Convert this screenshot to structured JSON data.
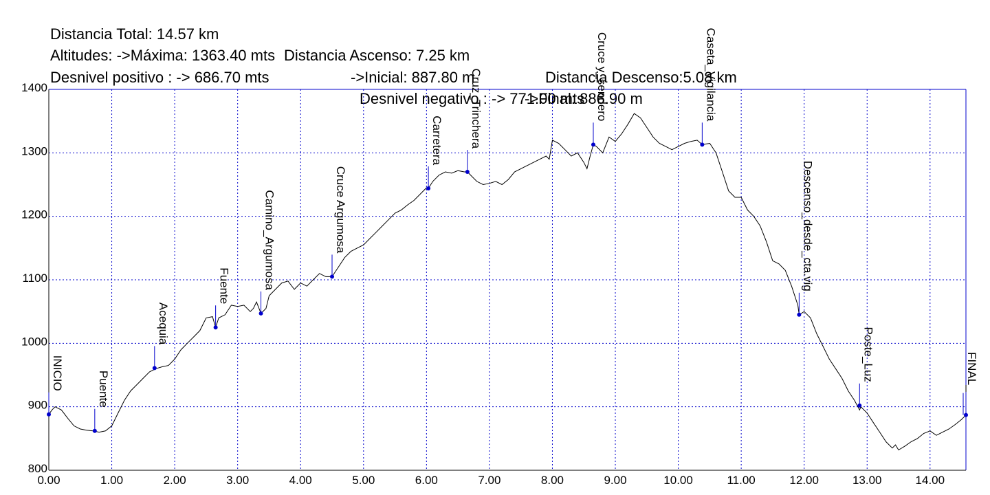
{
  "stats": {
    "total": "Distancia Total: 14.57 km",
    "ascent": "Distancia Ascenso: 7.25 km",
    "descent": "Distancia Descenso:5.08 km",
    "alt_max": "Altitudes: ->Máxima: 1363.40 mts",
    "alt_initial": "->Inicial: 887.80 m",
    "alt_final": "->Final: 886.90 m",
    "gain": "Desnivel positivo : -> 686.70 mts",
    "loss": "Desnivel negativo : -> 771.00 mts"
  },
  "chart_data": {
    "type": "line",
    "title": "",
    "xlabel": "",
    "ylabel": "",
    "xlim": [
      0,
      14.57
    ],
    "ylim": [
      800,
      1400
    ],
    "grid": true,
    "x_ticks": [
      "0.00",
      "1.00",
      "2.00",
      "3.00",
      "4.00",
      "5.00",
      "6.00",
      "7.00",
      "8.00",
      "9.00",
      "10.00",
      "11.00",
      "12.00",
      "13.00",
      "14.00"
    ],
    "y_ticks": [
      "800",
      "900",
      "1000",
      "1100",
      "1200",
      "1300",
      "1400"
    ],
    "colors": {
      "line": "#000000",
      "grid": "#0000cc",
      "frame": "#0000cc",
      "waypoint": "#0000cc"
    },
    "series": [
      {
        "x": [
          0,
          0.05,
          0.1,
          0.2,
          0.3,
          0.4,
          0.5,
          0.6,
          0.7,
          0.8,
          0.9,
          1.0,
          1.1,
          1.2,
          1.3,
          1.4,
          1.5,
          1.6,
          1.7,
          1.8,
          1.9,
          2.0,
          2.1,
          2.2,
          2.3,
          2.4,
          2.5,
          2.6,
          2.65,
          2.7,
          2.8,
          2.9,
          3.0,
          3.1,
          3.2,
          3.25,
          3.3,
          3.37,
          3.45,
          3.5,
          3.6,
          3.7,
          3.8,
          3.9,
          4.0,
          4.1,
          4.2,
          4.3,
          4.4,
          4.5,
          4.6,
          4.7,
          4.8,
          4.9,
          5.0,
          5.1,
          5.2,
          5.3,
          5.4,
          5.5,
          5.6,
          5.7,
          5.8,
          5.9,
          6.0,
          6.03,
          6.1,
          6.2,
          6.3,
          6.4,
          6.5,
          6.6,
          6.65,
          6.7,
          6.8,
          6.9,
          7.0,
          7.1,
          7.2,
          7.3,
          7.4,
          7.5,
          7.6,
          7.7,
          7.8,
          7.9,
          7.95,
          8.0,
          8.1,
          8.2,
          8.3,
          8.4,
          8.5,
          8.55,
          8.6,
          8.65,
          8.7,
          8.8,
          8.9,
          9.0,
          9.1,
          9.2,
          9.3,
          9.4,
          9.5,
          9.6,
          9.7,
          9.8,
          9.9,
          10.0,
          10.1,
          10.2,
          10.3,
          10.38,
          10.5,
          10.6,
          10.7,
          10.8,
          10.9,
          11.0,
          11.1,
          11.2,
          11.3,
          11.4,
          11.5,
          11.6,
          11.7,
          11.8,
          11.9,
          11.92,
          12.0,
          12.1,
          12.2,
          12.3,
          12.4,
          12.5,
          12.6,
          12.7,
          12.8,
          12.88,
          12.9,
          13.0,
          13.1,
          13.2,
          13.3,
          13.4,
          13.45,
          13.5,
          13.6,
          13.7,
          13.8,
          13.9,
          14.0,
          14.1,
          14.2,
          14.3,
          14.4,
          14.5,
          14.57
        ],
        "y": [
          888,
          895,
          900,
          895,
          882,
          870,
          865,
          863,
          862,
          860,
          862,
          870,
          890,
          910,
          925,
          935,
          945,
          955,
          960,
          963,
          965,
          975,
          990,
          1000,
          1010,
          1020,
          1040,
          1042,
          1025,
          1040,
          1045,
          1060,
          1058,
          1060,
          1050,
          1055,
          1065,
          1047,
          1055,
          1075,
          1085,
          1095,
          1098,
          1085,
          1095,
          1090,
          1100,
          1110,
          1105,
          1105,
          1120,
          1135,
          1145,
          1150,
          1155,
          1165,
          1175,
          1185,
          1195,
          1205,
          1210,
          1218,
          1225,
          1235,
          1245,
          1244,
          1255,
          1265,
          1270,
          1268,
          1272,
          1270,
          1270,
          1265,
          1255,
          1250,
          1252,
          1255,
          1250,
          1258,
          1270,
          1275,
          1280,
          1285,
          1290,
          1295,
          1290,
          1320,
          1315,
          1305,
          1295,
          1300,
          1285,
          1275,
          1295,
          1313,
          1310,
          1300,
          1325,
          1318,
          1330,
          1345,
          1362,
          1355,
          1340,
          1325,
          1315,
          1310,
          1305,
          1310,
          1315,
          1318,
          1320,
          1313,
          1315,
          1300,
          1270,
          1240,
          1230,
          1230,
          1210,
          1200,
          1185,
          1160,
          1130,
          1125,
          1115,
          1090,
          1060,
          1045,
          1050,
          1040,
          1015,
          995,
          975,
          960,
          945,
          925,
          910,
          895,
          900,
          890,
          875,
          860,
          845,
          835,
          840,
          832,
          838,
          845,
          850,
          858,
          862,
          855,
          860,
          865,
          872,
          880,
          887
        ]
      }
    ],
    "waypoints": [
      {
        "label": "INICIO",
        "x": 0.0,
        "y": 888
      },
      {
        "label": "Puente",
        "x": 0.73,
        "y": 862
      },
      {
        "label": "Acequia",
        "x": 1.68,
        "y": 961
      },
      {
        "label": "Fuente",
        "x": 2.65,
        "y": 1025
      },
      {
        "label": "Camino_Argumosa",
        "x": 3.37,
        "y": 1047
      },
      {
        "label": "Cruce Argumosa",
        "x": 4.5,
        "y": 1105
      },
      {
        "label": "Carretera",
        "x": 6.03,
        "y": 1244
      },
      {
        "label": "Cruz_Trinchera",
        "x": 6.65,
        "y": 1270
      },
      {
        "label": "Cruce y_sendero",
        "x": 8.65,
        "y": 1313
      },
      {
        "label": "Caseta_Vigilancia",
        "x": 10.38,
        "y": 1313
      },
      {
        "label": "Descenso_desde_cta.vig",
        "x": 11.92,
        "y": 1045
      },
      {
        "label": "Poste_Luz",
        "x": 12.88,
        "y": 902
      },
      {
        "label": "FINAL_",
        "x": 14.57,
        "y": 887
      }
    ]
  }
}
